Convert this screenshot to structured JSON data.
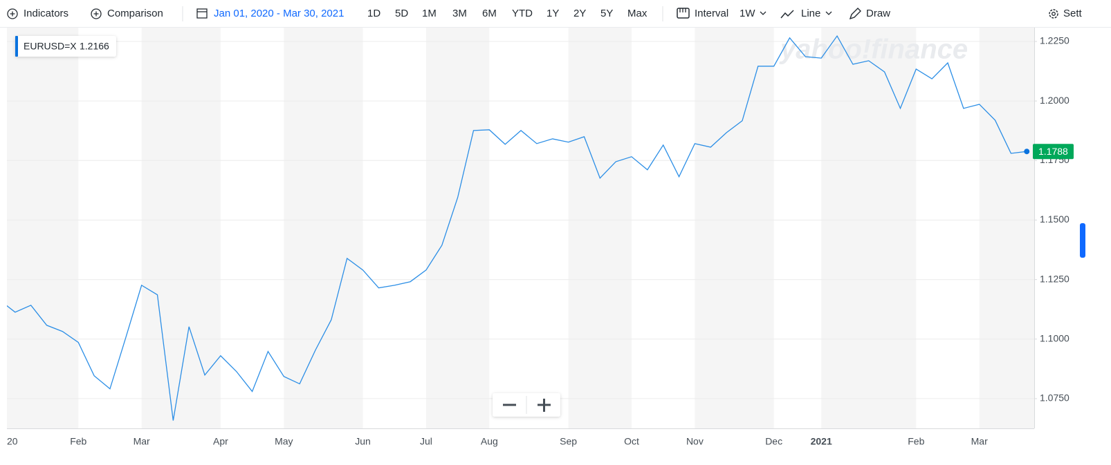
{
  "toolbar": {
    "indicators": "Indicators",
    "comparison": "Comparison",
    "date_range": "Jan 01, 2020 - Mar 30, 2021",
    "ranges": [
      "1D",
      "5D",
      "1M",
      "3M",
      "6M",
      "YTD",
      "1Y",
      "2Y",
      "5Y",
      "Max"
    ],
    "interval_label": "Interval",
    "interval": "1W",
    "chart_style": "Line",
    "draw": "Draw",
    "settings": "Sett"
  },
  "chart_data": {
    "type": "line",
    "watermark": "yahoo!finance",
    "hover_value": "1.2166",
    "categories": [
      "20",
      null,
      null,
      null,
      null,
      "Feb",
      null,
      null,
      null,
      "Mar",
      null,
      null,
      null,
      null,
      "Apr",
      null,
      null,
      null,
      "May",
      null,
      null,
      null,
      null,
      "Jun",
      null,
      null,
      null,
      "Jul",
      null,
      null,
      null,
      "Aug",
      null,
      null,
      null,
      null,
      "Sep",
      null,
      null,
      null,
      "Oct",
      null,
      null,
      null,
      "Nov",
      null,
      null,
      null,
      null,
      "Dec",
      null,
      null,
      "2021",
      null,
      null,
      null,
      null,
      null,
      "Feb",
      null,
      null,
      null,
      "Mar",
      null,
      null,
      null
    ],
    "series": [
      {
        "name": "EURUSD=X",
        "color": "#2b8ee6",
        "values": [
          1.1165,
          1.1113,
          1.1142,
          1.1058,
          1.1032,
          1.0986,
          1.0846,
          1.0791,
          1.1006,
          1.1226,
          1.1186,
          1.0658,
          1.1052,
          1.0849,
          1.093,
          1.0864,
          1.078,
          1.0948,
          1.0843,
          1.0812,
          1.0954,
          1.1081,
          1.1339,
          1.129,
          1.1215,
          1.1226,
          1.1241,
          1.129,
          1.1394,
          1.1595,
          1.1876,
          1.1879,
          1.1818,
          1.1876,
          1.1821,
          1.1841,
          1.1827,
          1.185,
          1.1676,
          1.1745,
          1.1766,
          1.1711,
          1.1815,
          1.1682,
          1.1821,
          1.1806,
          1.1867,
          1.1917,
          1.2146,
          1.2146,
          1.2265,
          1.2186,
          1.218,
          1.2273,
          1.2154,
          1.2169,
          1.2122,
          1.1969,
          1.2134,
          1.2093,
          1.216,
          1.1969,
          1.1986,
          1.1919,
          1.178,
          1.1788
        ],
        "value_labels": [
          null,
          null,
          null,
          null,
          null,
          null,
          null,
          null,
          null,
          null,
          null,
          null,
          null,
          null,
          null,
          null,
          null,
          null,
          null,
          null,
          null,
          null,
          null,
          null,
          null,
          null,
          null,
          null,
          null,
          null,
          null,
          null,
          null,
          null,
          null,
          null,
          null,
          null,
          null,
          null,
          null,
          null,
          null,
          null,
          null,
          null,
          null,
          null,
          null,
          null,
          null,
          null,
          null,
          null,
          null,
          null,
          null,
          null,
          null,
          null,
          null,
          null,
          null,
          null,
          null,
          "1.1788"
        ]
      }
    ],
    "ylim": [
      1.0625,
      1.2308
    ],
    "yticks": [
      {
        "value": 1.075,
        "label": "1.0750"
      },
      {
        "value": 1.1,
        "label": "1.1000"
      },
      {
        "value": 1.125,
        "label": "1.1250"
      },
      {
        "value": 1.15,
        "label": "1.1500"
      },
      {
        "value": 1.175,
        "label": "1.1750"
      },
      {
        "value": 1.2,
        "label": "1.2000"
      },
      {
        "value": 1.225,
        "label": "1.2250"
      }
    ],
    "grid": true
  }
}
